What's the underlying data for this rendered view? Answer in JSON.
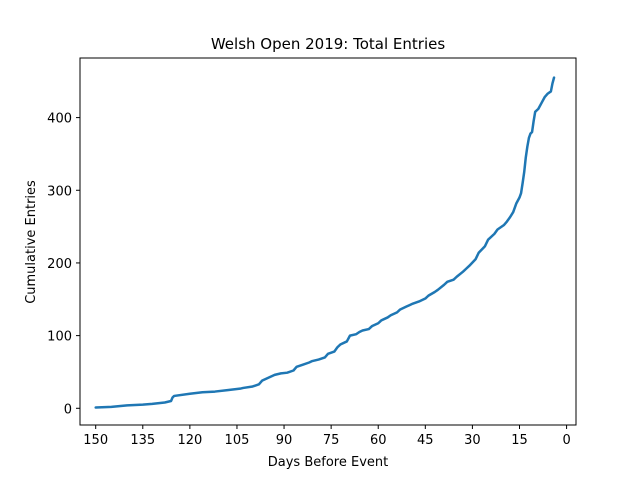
{
  "chart_data": {
    "type": "line",
    "title": "Welsh Open 2019: Total Entries",
    "xlabel": "Days Before Event",
    "ylabel": "Cumulative Entries",
    "x_inverted": true,
    "xlim": [
      155,
      -3
    ],
    "ylim": [
      -23,
      482
    ],
    "xticks": [
      150,
      135,
      120,
      105,
      90,
      75,
      60,
      45,
      30,
      15,
      0
    ],
    "yticks": [
      0,
      100,
      200,
      300,
      400
    ],
    "grid": false,
    "series": [
      {
        "color": "#1f77b4",
        "x": [
          150,
          145,
          140,
          135,
          132,
          128,
          126,
          125.5,
          125,
          120,
          116,
          112,
          108,
          104,
          103,
          100,
          98,
          97,
          95,
          93,
          91,
          89,
          87,
          86,
          84,
          82,
          81,
          79,
          77,
          76,
          74,
          73,
          72,
          70,
          69,
          67,
          66,
          65,
          63,
          62,
          60,
          59,
          57,
          56,
          54,
          53,
          51,
          50,
          49,
          47,
          45,
          44,
          42,
          41,
          39,
          38,
          36,
          35,
          33,
          32,
          31,
          29,
          28,
          26,
          25,
          23,
          22,
          20,
          19,
          18,
          17,
          16,
          15,
          14.5,
          14,
          13.5,
          13,
          12.5,
          12,
          11.5,
          11,
          10.5,
          10,
          9,
          8,
          7,
          6,
          5,
          4.5,
          4
        ],
        "y": [
          1,
          2,
          4,
          5,
          6,
          8,
          10,
          15,
          17,
          20,
          22,
          23,
          25,
          27,
          28,
          30,
          33,
          38,
          42,
          46,
          48,
          49,
          52,
          57,
          60,
          63,
          65,
          67,
          70,
          75,
          78,
          84,
          88,
          92,
          100,
          102,
          105,
          107,
          109,
          113,
          117,
          121,
          125,
          128,
          132,
          136,
          140,
          142,
          144,
          147,
          151,
          155,
          160,
          163,
          170,
          174,
          177,
          181,
          188,
          192,
          196,
          205,
          214,
          223,
          232,
          240,
          246,
          252,
          257,
          263,
          270,
          282,
          290,
          296,
          310,
          325,
          345,
          360,
          372,
          378,
          380,
          395,
          408,
          412,
          420,
          428,
          433,
          436,
          447,
          455
        ]
      }
    ]
  }
}
